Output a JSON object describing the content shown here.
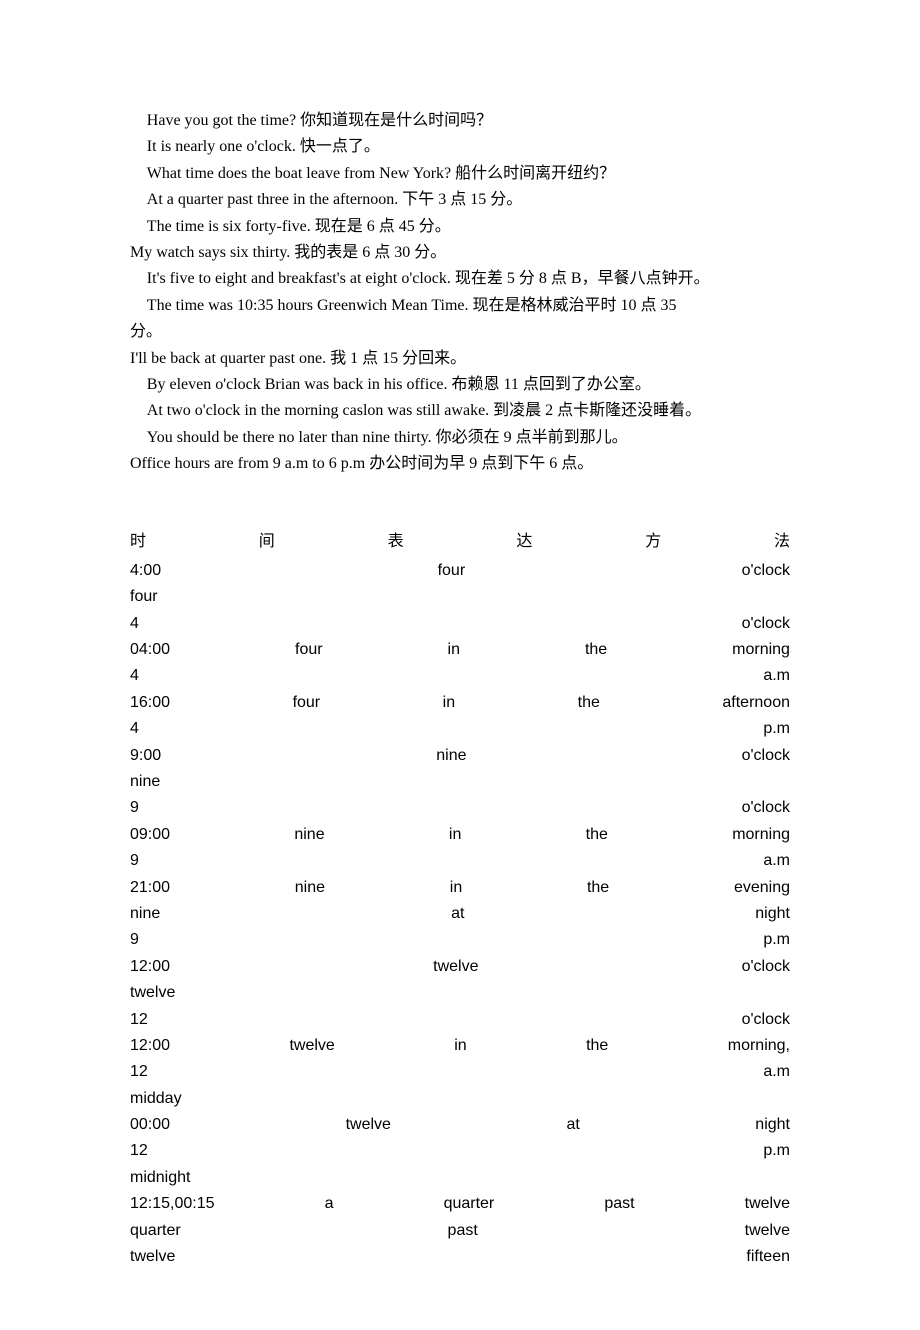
{
  "sentences": [
    {
      "text": "Have you got the time?  你知道现在是什么时间吗？",
      "indent": true
    },
    {
      "text": "It is nearly one o'clock.  快一点了。",
      "indent": true
    },
    {
      "text": "What time does the boat leave from New York?  船什么时间离开纽约？",
      "indent": true
    },
    {
      "text": "At a quarter past three in the afternoon.  下午 3 点 15 分。",
      "indent": true
    },
    {
      "text": "The time is six forty-five.  现在是 6 点 45 分。",
      "indent": true
    },
    {
      "text": "My watch says six thirty.  我的表是 6 点 30 分。",
      "indent": false
    },
    {
      "text": "It's five to eight and breakfast's at eight o'clock.  现在差 5 分 8 点 B，早餐八点钟开。",
      "indent": true
    },
    {
      "text": "The time was 10:35 hours Greenwich Mean Time.  现在是格林威治平时 10 点 35",
      "indent": true
    },
    {
      "text": "分。",
      "indent": false
    },
    {
      "text": "I'll be back at quarter past one.  我 1 点 15 分回来。",
      "indent": false
    },
    {
      "text": "By eleven o'clock Brian was back in his office.  布赖恩 11 点回到了办公室。",
      "indent": true
    },
    {
      "text": "At two o'clock in the morning caslon was still awake.  到凌晨 2 点卡斯隆还没睡着。",
      "indent": true
    },
    {
      "text": "You should be there no later than nine thirty.  你必须在 9 点半前到那儿。",
      "indent": true
    },
    {
      "text": "Office hours are from 9 a.m to 6 p.m  办公时间为早 9 点到下午 6 点。",
      "indent": false
    }
  ],
  "tableHeader": [
    "时",
    "间",
    "表",
    "达",
    "方",
    "法"
  ],
  "tableRows": [
    [
      "4:00",
      "",
      "four",
      "",
      "",
      "o'clock"
    ],
    [
      "four",
      "",
      "",
      "",
      "",
      ""
    ],
    [
      "4",
      "",
      "",
      "",
      "",
      "o'clock"
    ],
    [
      "04:00",
      "four",
      "",
      "in",
      "the",
      "morning"
    ],
    [
      "4",
      "",
      "",
      "",
      "",
      "a.m"
    ],
    [
      "16:00",
      "four",
      "",
      "in",
      "the",
      "afternoon"
    ],
    [
      "4",
      "",
      "",
      "",
      "",
      "p.m"
    ],
    [
      "9:00",
      "",
      "nine",
      "",
      "",
      "o'clock"
    ],
    [
      "nine",
      "",
      "",
      "",
      "",
      ""
    ],
    [
      "9",
      "",
      "",
      "",
      "",
      "o'clock"
    ],
    [
      "09:00",
      "nine",
      "",
      "in",
      "the",
      "morning"
    ],
    [
      "9",
      "",
      "",
      "",
      "",
      "a.m"
    ],
    [
      "21:00",
      "nine",
      "",
      "in",
      "the",
      "evening"
    ],
    [
      "nine",
      "",
      "at",
      "",
      "",
      "night"
    ],
    [
      "9",
      "",
      "",
      "",
      "",
      "p.m"
    ],
    [
      "12:00",
      "",
      "twelve",
      "",
      "",
      "o'clock"
    ],
    [
      "twelve",
      "",
      "",
      "",
      "",
      ""
    ],
    [
      "12",
      "",
      "",
      "",
      "",
      "o'clock"
    ],
    [
      "12:00",
      "twelve",
      "",
      "in",
      "the",
      "morning,"
    ],
    [
      "12",
      "",
      "",
      "",
      "",
      "a.m"
    ],
    [
      "midday",
      "",
      "",
      "",
      "",
      ""
    ],
    [
      "00:00",
      "",
      "twelve",
      "",
      "at",
      "night"
    ],
    [
      "12",
      "",
      "",
      "",
      "",
      "p.m"
    ],
    [
      "midnight",
      "",
      "",
      "",
      "",
      ""
    ],
    [
      "12:15,00:15",
      "a",
      "",
      "quarter",
      "past",
      "twelve"
    ],
    [
      "quarter",
      "",
      "past",
      "",
      "",
      "twelve"
    ],
    [
      "twelve",
      "",
      "",
      "",
      "",
      "fifteen"
    ]
  ],
  "colors": {
    "text": "#000000",
    "background": "#ffffff"
  }
}
